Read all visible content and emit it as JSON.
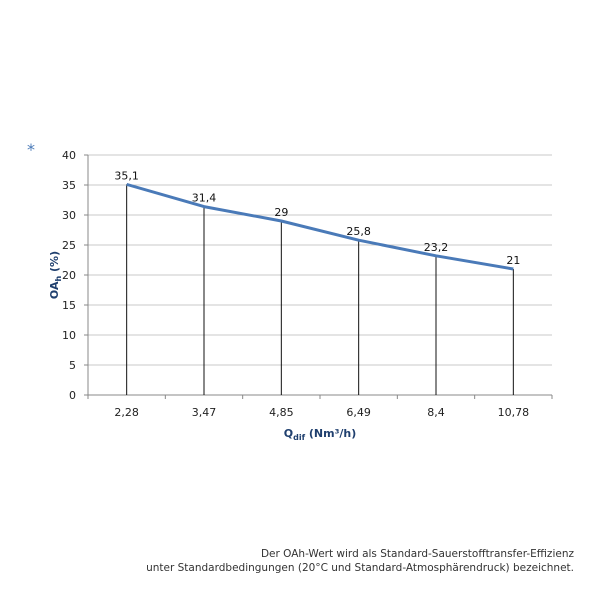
{
  "marker": "*",
  "chart_data": {
    "type": "line",
    "categories": [
      "2,28",
      "3,47",
      "4,85",
      "6,49",
      "8,4",
      "10,78"
    ],
    "values": [
      35.1,
      31.4,
      29,
      25.8,
      23.2,
      21
    ],
    "data_labels": [
      "35,1",
      "31,4",
      "29",
      "25,8",
      "23,2",
      "21"
    ],
    "xlabel": {
      "main": "Q",
      "sub": "dif",
      "unit": " (Nm³/h)"
    },
    "ylabel": {
      "main": "OA",
      "sub": "h",
      "unit": " (%)"
    },
    "ylim": [
      0,
      40
    ],
    "yticks": [
      "0",
      "5",
      "10",
      "15",
      "20",
      "25",
      "30",
      "35",
      "40"
    ],
    "grid": true,
    "drop_lines": true,
    "line_color": "#4a7ab8"
  },
  "note": {
    "line1": "Der OAh-Wert wird als Standard-Sauerstofftransfer-Effizienz",
    "line2": "unter Standardbedingungen (20°C und Standard-Atmosphärendruck) bezeichnet."
  }
}
